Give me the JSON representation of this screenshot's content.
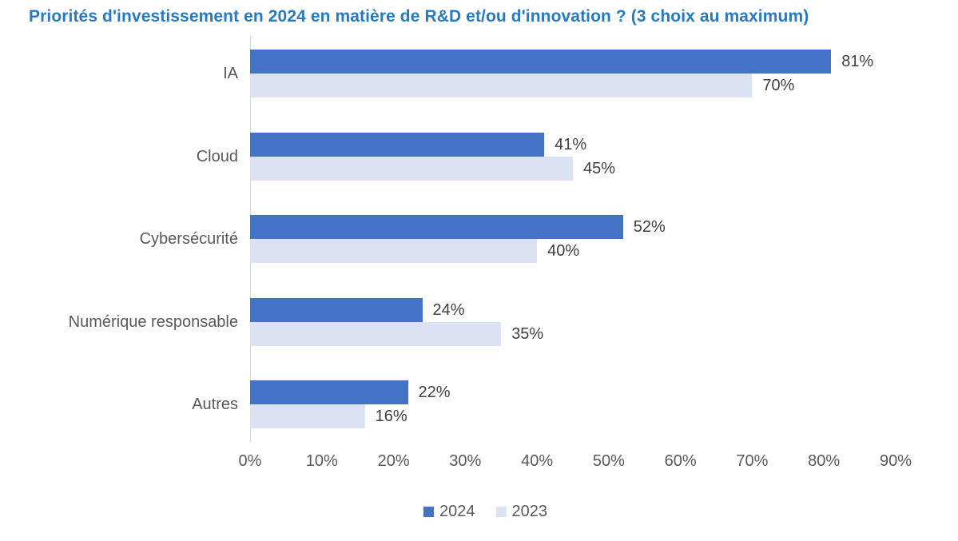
{
  "title": "Priorités d'investissement en 2024 en matière de R&D et/ou d'innovation ? (3 choix au maximum)",
  "chart_data": {
    "type": "bar",
    "orientation": "horizontal",
    "title": "Priorités d'investissement en 2024 en matière de R&D et/ou d'innovation ? (3 choix au maximum)",
    "categories": [
      "IA",
      "Cloud",
      "Cybersécurité",
      "Numérique responsable",
      "Autres"
    ],
    "series": [
      {
        "name": "2024",
        "color": "#4472C4",
        "values": [
          81,
          41,
          52,
          24,
          22
        ]
      },
      {
        "name": "2023",
        "color": "#DAE2F3",
        "values": [
          70,
          45,
          40,
          35,
          16
        ]
      }
    ],
    "value_labels": [
      [
        "81%",
        "41%",
        "52%",
        "24%",
        "22%"
      ],
      [
        "70%",
        "45%",
        "40%",
        "35%",
        "16%"
      ]
    ],
    "xlabel": "",
    "ylabel": "",
    "xlim": [
      0,
      90
    ],
    "x_ticks": [
      "0%",
      "10%",
      "20%",
      "30%",
      "40%",
      "50%",
      "60%",
      "70%",
      "80%",
      "90%"
    ],
    "grid": false,
    "legend_position": "bottom",
    "legend_entries": [
      "2024",
      "2023"
    ]
  },
  "colors": {
    "title": "#2879BD",
    "series_2024": "#4472C4",
    "series_2023": "#DAE2F3",
    "axis_line": "#D9D9D9",
    "category_label": "#595959",
    "value_label": "#3F3F3F",
    "tick_label": "#595959",
    "legend_label": "#595959",
    "background": "#FFFFFF"
  }
}
